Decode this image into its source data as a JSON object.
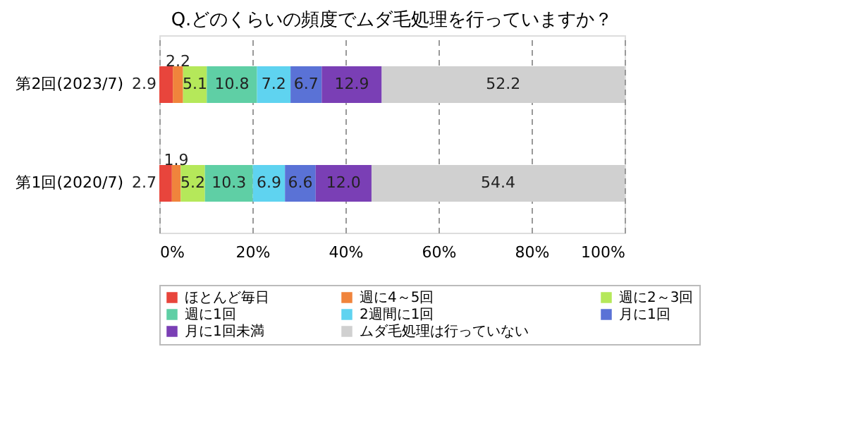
{
  "chart_data": {
    "type": "bar",
    "orientation": "horizontal",
    "stacked": true,
    "title": "Q.どのくらいの頻度でムダ毛処理を行っていますか？",
    "categories": [
      "第2回(2023/7)",
      "第1回(2020/7)"
    ],
    "series": [
      {
        "name": "ほとんど毎日",
        "color": "#e8453c",
        "values": [
          2.9,
          2.7
        ],
        "value_labels": [
          "2.9",
          "2.7"
        ]
      },
      {
        "name": "週に4～5回",
        "color": "#f0843c",
        "values": [
          2.2,
          1.9
        ],
        "value_labels": [
          "2.2",
          "1.9"
        ]
      },
      {
        "name": "週に2～3回",
        "color": "#b5e85a",
        "values": [
          5.1,
          5.2
        ],
        "value_labels": [
          "5.1",
          "5.2"
        ]
      },
      {
        "name": "週に1回",
        "color": "#5fcfa5",
        "values": [
          10.8,
          10.3
        ],
        "value_labels": [
          "10.8",
          "10.3"
        ]
      },
      {
        "name": "2週間に1回",
        "color": "#5fd3f0",
        "values": [
          7.2,
          6.9
        ],
        "value_labels": [
          "7.2",
          "6.9"
        ]
      },
      {
        "name": "月に1回",
        "color": "#5a72d6",
        "values": [
          6.7,
          6.6
        ],
        "value_labels": [
          "6.7",
          "6.6"
        ]
      },
      {
        "name": "月に1回未満",
        "color": "#7a3fb5",
        "values": [
          12.9,
          12.0
        ],
        "value_labels": [
          "12.9",
          "12.0"
        ]
      },
      {
        "name": "ムダ毛処理は行っていない",
        "color": "#d0d0d0",
        "values": [
          52.2,
          54.4
        ],
        "value_labels": [
          "52.2",
          "54.4"
        ]
      }
    ],
    "xlim": [
      0,
      100
    ],
    "xticks": [
      {
        "value": 0,
        "label": "0%"
      },
      {
        "value": 20,
        "label": "20%"
      },
      {
        "value": 40,
        "label": "40%"
      },
      {
        "value": 60,
        "label": "60%"
      },
      {
        "value": 80,
        "label": "80%"
      },
      {
        "value": 100,
        "label": "100%"
      }
    ],
    "grid": "x",
    "legend": "bottom"
  }
}
